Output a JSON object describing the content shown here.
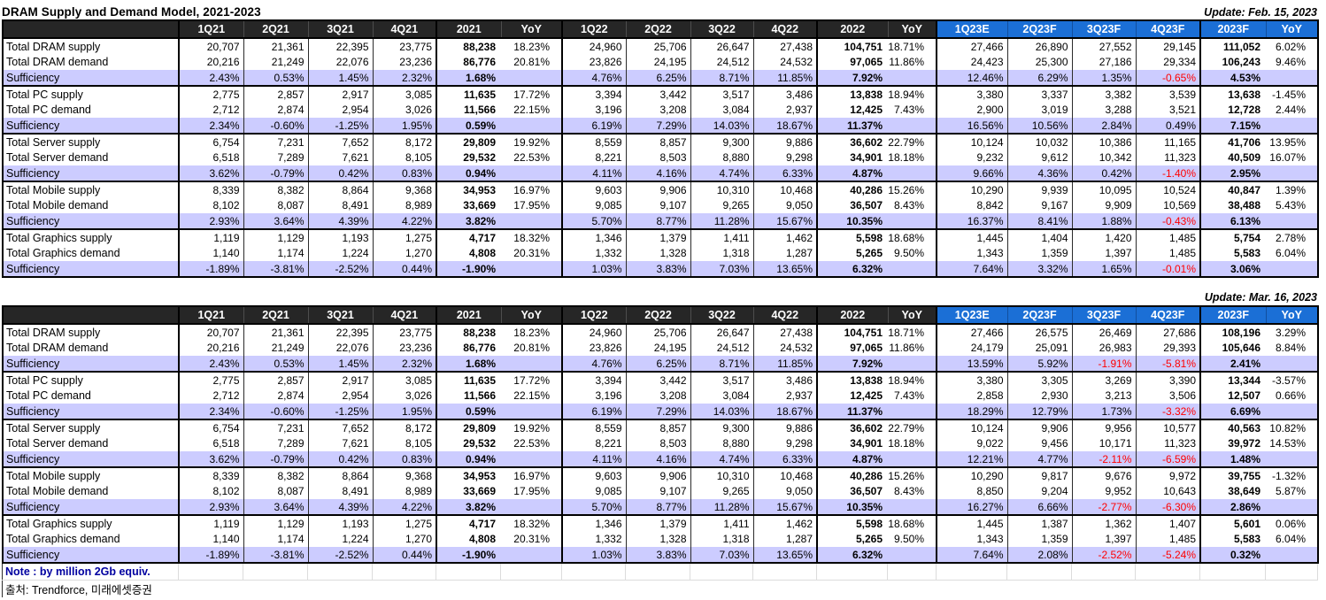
{
  "title": "DRAM Supply and Demand Model, 2021-2023",
  "note": "Note : by million 2Gb equiv.",
  "source": "출처: Trendforce, 미래에셋증권",
  "colors": {
    "header_black": "#262626",
    "header_blue": "#1B6FD6",
    "sufficiency_bg": "#CCCCFF",
    "negative_red": "#FF0000",
    "note_blue": "#0000A0"
  },
  "columns": [
    "",
    "1Q21",
    "2Q21",
    "3Q21",
    "4Q21",
    "2021",
    "YoY",
    "1Q22",
    "2Q22",
    "3Q22",
    "4Q22",
    "2022",
    "YoY",
    "1Q23E",
    "2Q23F",
    "3Q23F",
    "4Q23F",
    "2023F",
    "YoY"
  ],
  "tables": [
    {
      "update": "Update: Feb. 15, 2023",
      "rows": [
        {
          "label": "Total DRAM supply",
          "type": "supply",
          "values": [
            "20,707",
            "21,361",
            "22,395",
            "23,775",
            "88,238",
            "18.23%",
            "24,960",
            "25,706",
            "26,647",
            "27,438",
            "104,751",
            "18.71%",
            "27,466",
            "26,890",
            "27,552",
            "29,145",
            "111,052",
            "6.02%"
          ]
        },
        {
          "label": "Total DRAM demand",
          "type": "demand",
          "values": [
            "20,216",
            "21,249",
            "22,076",
            "23,236",
            "86,776",
            "20.81%",
            "23,826",
            "24,195",
            "24,512",
            "24,532",
            "97,065",
            "11.86%",
            "24,423",
            "25,300",
            "27,186",
            "29,334",
            "106,243",
            "9.46%"
          ]
        },
        {
          "label": "Sufficiency",
          "type": "sufficiency",
          "values": [
            "2.43%",
            "0.53%",
            "1.45%",
            "2.32%",
            "1.68%",
            "",
            "4.76%",
            "6.25%",
            "8.71%",
            "11.85%",
            "7.92%",
            "",
            "12.46%",
            "6.29%",
            "1.35%",
            "-0.65%",
            "4.53%",
            ""
          ]
        },
        {
          "label": "Total PC supply",
          "type": "supply",
          "values": [
            "2,775",
            "2,857",
            "2,917",
            "3,085",
            "11,635",
            "17.72%",
            "3,394",
            "3,442",
            "3,517",
            "3,486",
            "13,838",
            "18.94%",
            "3,380",
            "3,337",
            "3,382",
            "3,539",
            "13,638",
            "-1.45%"
          ]
        },
        {
          "label": "Total PC demand",
          "type": "demand",
          "values": [
            "2,712",
            "2,874",
            "2,954",
            "3,026",
            "11,566",
            "22.15%",
            "3,196",
            "3,208",
            "3,084",
            "2,937",
            "12,425",
            "7.43%",
            "2,900",
            "3,019",
            "3,288",
            "3,521",
            "12,728",
            "2.44%"
          ]
        },
        {
          "label": "Sufficiency",
          "type": "sufficiency",
          "values": [
            "2.34%",
            "-0.60%",
            "-1.25%",
            "1.95%",
            "0.59%",
            "",
            "6.19%",
            "7.29%",
            "14.03%",
            "18.67%",
            "11.37%",
            "",
            "16.56%",
            "10.56%",
            "2.84%",
            "0.49%",
            "7.15%",
            ""
          ]
        },
        {
          "label": "Total Server supply",
          "type": "supply",
          "values": [
            "6,754",
            "7,231",
            "7,652",
            "8,172",
            "29,809",
            "19.92%",
            "8,559",
            "8,857",
            "9,300",
            "9,886",
            "36,602",
            "22.79%",
            "10,124",
            "10,032",
            "10,386",
            "11,165",
            "41,706",
            "13.95%"
          ]
        },
        {
          "label": "Total Server demand",
          "type": "demand",
          "values": [
            "6,518",
            "7,289",
            "7,621",
            "8,105",
            "29,532",
            "22.53%",
            "8,221",
            "8,503",
            "8,880",
            "9,298",
            "34,901",
            "18.18%",
            "9,232",
            "9,612",
            "10,342",
            "11,323",
            "40,509",
            "16.07%"
          ]
        },
        {
          "label": "Sufficiency",
          "type": "sufficiency",
          "values": [
            "3.62%",
            "-0.79%",
            "0.42%",
            "0.83%",
            "0.94%",
            "",
            "4.11%",
            "4.16%",
            "4.74%",
            "6.33%",
            "4.87%",
            "",
            "9.66%",
            "4.36%",
            "0.42%",
            "-1.40%",
            "2.95%",
            ""
          ]
        },
        {
          "label": "Total Mobile supply",
          "type": "supply",
          "values": [
            "8,339",
            "8,382",
            "8,864",
            "9,368",
            "34,953",
            "16.97%",
            "9,603",
            "9,906",
            "10,310",
            "10,468",
            "40,286",
            "15.26%",
            "10,290",
            "9,939",
            "10,095",
            "10,524",
            "40,847",
            "1.39%"
          ]
        },
        {
          "label": "Total Mobile demand",
          "type": "demand",
          "values": [
            "8,102",
            "8,087",
            "8,491",
            "8,989",
            "33,669",
            "17.95%",
            "9,085",
            "9,107",
            "9,265",
            "9,050",
            "36,507",
            "8.43%",
            "8,842",
            "9,167",
            "9,909",
            "10,569",
            "38,488",
            "5.43%"
          ]
        },
        {
          "label": "Sufficiency",
          "type": "sufficiency",
          "values": [
            "2.93%",
            "3.64%",
            "4.39%",
            "4.22%",
            "3.82%",
            "",
            "5.70%",
            "8.77%",
            "11.28%",
            "15.67%",
            "10.35%",
            "",
            "16.37%",
            "8.41%",
            "1.88%",
            "-0.43%",
            "6.13%",
            ""
          ]
        },
        {
          "label": "Total Graphics supply",
          "type": "supply",
          "values": [
            "1,119",
            "1,129",
            "1,193",
            "1,275",
            "4,717",
            "18.32%",
            "1,346",
            "1,379",
            "1,411",
            "1,462",
            "5,598",
            "18.68%",
            "1,445",
            "1,404",
            "1,420",
            "1,485",
            "5,754",
            "2.78%"
          ]
        },
        {
          "label": "Total Graphics demand",
          "type": "demand",
          "values": [
            "1,140",
            "1,174",
            "1,224",
            "1,270",
            "4,808",
            "20.31%",
            "1,332",
            "1,328",
            "1,318",
            "1,287",
            "5,265",
            "9.50%",
            "1,343",
            "1,359",
            "1,397",
            "1,485",
            "5,583",
            "6.04%"
          ]
        },
        {
          "label": "Sufficiency",
          "type": "sufficiency",
          "values": [
            "-1.89%",
            "-3.81%",
            "-2.52%",
            "0.44%",
            "-1.90%",
            "",
            "1.03%",
            "3.83%",
            "7.03%",
            "13.65%",
            "6.32%",
            "",
            "7.64%",
            "3.32%",
            "1.65%",
            "-0.01%",
            "3.06%",
            ""
          ]
        }
      ]
    },
    {
      "update": "Update: Mar. 16, 2023",
      "rows": [
        {
          "label": "Total DRAM supply",
          "type": "supply",
          "values": [
            "20,707",
            "21,361",
            "22,395",
            "23,775",
            "88,238",
            "18.23%",
            "24,960",
            "25,706",
            "26,647",
            "27,438",
            "104,751",
            "18.71%",
            "27,466",
            "26,575",
            "26,469",
            "27,686",
            "108,196",
            "3.29%"
          ]
        },
        {
          "label": "Total DRAM demand",
          "type": "demand",
          "values": [
            "20,216",
            "21,249",
            "22,076",
            "23,236",
            "86,776",
            "20.81%",
            "23,826",
            "24,195",
            "24,512",
            "24,532",
            "97,065",
            "11.86%",
            "24,179",
            "25,091",
            "26,983",
            "29,393",
            "105,646",
            "8.84%"
          ]
        },
        {
          "label": "Sufficiency",
          "type": "sufficiency",
          "values": [
            "2.43%",
            "0.53%",
            "1.45%",
            "2.32%",
            "1.68%",
            "",
            "4.76%",
            "6.25%",
            "8.71%",
            "11.85%",
            "7.92%",
            "",
            "13.59%",
            "5.92%",
            "-1.91%",
            "-5.81%",
            "2.41%",
            ""
          ]
        },
        {
          "label": "Total PC supply",
          "type": "supply",
          "values": [
            "2,775",
            "2,857",
            "2,917",
            "3,085",
            "11,635",
            "17.72%",
            "3,394",
            "3,442",
            "3,517",
            "3,486",
            "13,838",
            "18.94%",
            "3,380",
            "3,305",
            "3,269",
            "3,390",
            "13,344",
            "-3.57%"
          ]
        },
        {
          "label": "Total PC demand",
          "type": "demand",
          "values": [
            "2,712",
            "2,874",
            "2,954",
            "3,026",
            "11,566",
            "22.15%",
            "3,196",
            "3,208",
            "3,084",
            "2,937",
            "12,425",
            "7.43%",
            "2,858",
            "2,930",
            "3,213",
            "3,506",
            "12,507",
            "0.66%"
          ]
        },
        {
          "label": "Sufficiency",
          "type": "sufficiency",
          "values": [
            "2.34%",
            "-0.60%",
            "-1.25%",
            "1.95%",
            "0.59%",
            "",
            "6.19%",
            "7.29%",
            "14.03%",
            "18.67%",
            "11.37%",
            "",
            "18.29%",
            "12.79%",
            "1.73%",
            "-3.32%",
            "6.69%",
            ""
          ]
        },
        {
          "label": "Total Server supply",
          "type": "supply",
          "values": [
            "6,754",
            "7,231",
            "7,652",
            "8,172",
            "29,809",
            "19.92%",
            "8,559",
            "8,857",
            "9,300",
            "9,886",
            "36,602",
            "22.79%",
            "10,124",
            "9,906",
            "9,956",
            "10,577",
            "40,563",
            "10.82%"
          ]
        },
        {
          "label": "Total Server demand",
          "type": "demand",
          "values": [
            "6,518",
            "7,289",
            "7,621",
            "8,105",
            "29,532",
            "22.53%",
            "8,221",
            "8,503",
            "8,880",
            "9,298",
            "34,901",
            "18.18%",
            "9,022",
            "9,456",
            "10,171",
            "11,323",
            "39,972",
            "14.53%"
          ]
        },
        {
          "label": "Sufficiency",
          "type": "sufficiency",
          "values": [
            "3.62%",
            "-0.79%",
            "0.42%",
            "0.83%",
            "0.94%",
            "",
            "4.11%",
            "4.16%",
            "4.74%",
            "6.33%",
            "4.87%",
            "",
            "12.21%",
            "4.77%",
            "-2.11%",
            "-6.59%",
            "1.48%",
            ""
          ]
        },
        {
          "label": "Total Mobile supply",
          "type": "supply",
          "values": [
            "8,339",
            "8,382",
            "8,864",
            "9,368",
            "34,953",
            "16.97%",
            "9,603",
            "9,906",
            "10,310",
            "10,468",
            "40,286",
            "15.26%",
            "10,290",
            "9,817",
            "9,676",
            "9,972",
            "39,755",
            "-1.32%"
          ]
        },
        {
          "label": "Total Mobile demand",
          "type": "demand",
          "values": [
            "8,102",
            "8,087",
            "8,491",
            "8,989",
            "33,669",
            "17.95%",
            "9,085",
            "9,107",
            "9,265",
            "9,050",
            "36,507",
            "8.43%",
            "8,850",
            "9,204",
            "9,952",
            "10,643",
            "38,649",
            "5.87%"
          ]
        },
        {
          "label": "Sufficiency",
          "type": "sufficiency",
          "values": [
            "2.93%",
            "3.64%",
            "4.39%",
            "4.22%",
            "3.82%",
            "",
            "5.70%",
            "8.77%",
            "11.28%",
            "15.67%",
            "10.35%",
            "",
            "16.27%",
            "6.66%",
            "-2.77%",
            "-6.30%",
            "2.86%",
            ""
          ]
        },
        {
          "label": "Total Graphics supply",
          "type": "supply",
          "values": [
            "1,119",
            "1,129",
            "1,193",
            "1,275",
            "4,717",
            "18.32%",
            "1,346",
            "1,379",
            "1,411",
            "1,462",
            "5,598",
            "18.68%",
            "1,445",
            "1,387",
            "1,362",
            "1,407",
            "5,601",
            "0.06%"
          ]
        },
        {
          "label": "Total Graphics demand",
          "type": "demand",
          "values": [
            "1,140",
            "1,174",
            "1,224",
            "1,270",
            "4,808",
            "20.31%",
            "1,332",
            "1,328",
            "1,318",
            "1,287",
            "5,265",
            "9.50%",
            "1,343",
            "1,359",
            "1,397",
            "1,485",
            "5,583",
            "6.04%"
          ]
        },
        {
          "label": "Sufficiency",
          "type": "sufficiency",
          "values": [
            "-1.89%",
            "-3.81%",
            "-2.52%",
            "0.44%",
            "-1.90%",
            "",
            "1.03%",
            "3.83%",
            "7.03%",
            "13.65%",
            "6.32%",
            "",
            "7.64%",
            "2.08%",
            "-2.52%",
            "-5.24%",
            "0.32%",
            ""
          ]
        }
      ]
    }
  ]
}
